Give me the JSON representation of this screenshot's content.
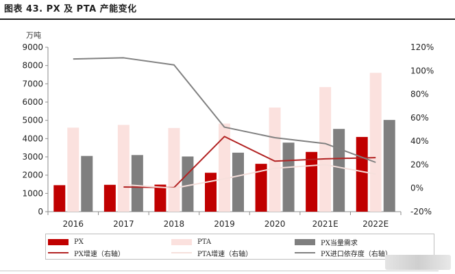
{
  "figure_title": "图表 43. PX 及 PTA 产能变化",
  "chart_data": {
    "type": "bar",
    "title": "",
    "ylabel": "万吨",
    "categories": [
      "2016",
      "2017",
      "2018",
      "2019",
      "2020",
      "2021E",
      "2022E"
    ],
    "ylim": [
      0,
      9000
    ],
    "yticks": [
      0,
      1000,
      2000,
      3000,
      4000,
      5000,
      6000,
      7000,
      8000,
      9000
    ],
    "y2lim": [
      -20,
      120
    ],
    "y2ticks": [
      -20,
      0,
      20,
      40,
      60,
      80,
      100,
      120
    ],
    "y2tick_labels": [
      "-20%",
      "0%",
      "20%",
      "40%",
      "60%",
      "80%",
      "100%",
      "120%"
    ],
    "grid": false,
    "bar_series": [
      {
        "name": "PX",
        "color": "#c00000",
        "values": [
          1450,
          1470,
          1480,
          2130,
          2620,
          3270,
          4090
        ]
      },
      {
        "name": "PTA",
        "color": "#fbe1de",
        "values": [
          4600,
          4750,
          4580,
          4820,
          5700,
          6820,
          7600
        ]
      },
      {
        "name": "PX当量需求",
        "color": "#7f7f7f",
        "values": [
          3050,
          3100,
          3020,
          3230,
          3780,
          4530,
          5020
        ]
      }
    ],
    "line_series": [
      {
        "name": "PX增速（右轴）",
        "color": "#b22222",
        "axis": "right",
        "values": [
          null,
          1,
          0.5,
          44,
          23,
          25,
          26
        ]
      },
      {
        "name": "PTA增速（右轴）",
        "color": "#f6e0dc",
        "axis": "right",
        "values": [
          null,
          3,
          0,
          8,
          17,
          20,
          12
        ]
      },
      {
        "name": "PX进口依存度（右轴）",
        "color": "#808080",
        "axis": "right",
        "values": [
          110,
          111,
          105,
          52,
          43,
          38,
          22
        ]
      }
    ],
    "legend_position": "bottom"
  }
}
